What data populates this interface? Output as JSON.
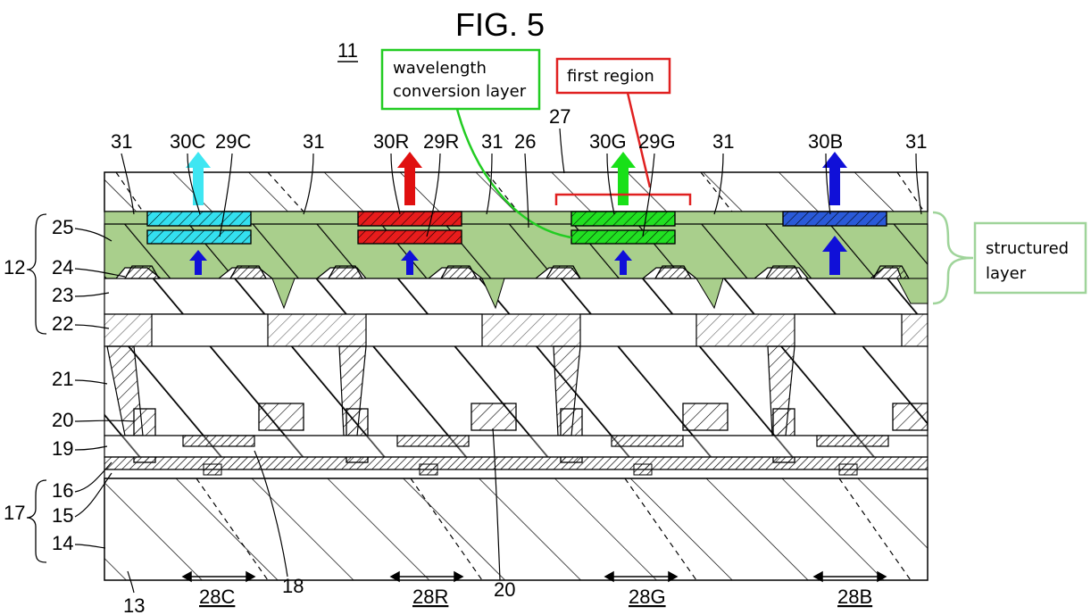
{
  "figure": {
    "title": "FIG. 5",
    "device_ref": "11",
    "colors": {
      "structured_layer": "#a9cf8c",
      "cyan": "#33e0f0",
      "red": "#e81c1c",
      "green": "#22e022",
      "blue": "#2a5ad8",
      "arrow_cyan": "#3ee6f2",
      "arrow_red": "#e01010",
      "arrow_green": "#18e018",
      "arrow_blue": "#1010d8",
      "callout_green": "#22cc22",
      "callout_red": "#e02020",
      "callout_lightgreen": "#9fd49a"
    }
  },
  "callouts": {
    "wavelength": [
      "wavelength",
      "conversion layer"
    ],
    "first_region": "first region",
    "structured": [
      "structured",
      "layer"
    ]
  },
  "top_labels": {
    "l31a": "31",
    "l30C": "30C",
    "l29C": "29C",
    "l31b": "31",
    "l30R": "30R",
    "l29R": "29R",
    "l31c": "31",
    "l26": "26",
    "l27": "27",
    "l30G": "30G",
    "l29G": "29G",
    "l31d": "31",
    "l30B": "30B",
    "l31e": "31"
  },
  "left_labels": {
    "l12": "12",
    "l25": "25",
    "l24": "24",
    "l23": "23",
    "l22": "22",
    "l21": "21",
    "l20": "20",
    "l19": "19",
    "l17": "17",
    "l16": "16",
    "l15": "15",
    "l14": "14"
  },
  "bottom_labels": {
    "l13": "13",
    "l28C": "28C",
    "l18": "18",
    "l28R": "28R",
    "l20b": "20",
    "l28G": "28G",
    "l28B": "28B"
  }
}
